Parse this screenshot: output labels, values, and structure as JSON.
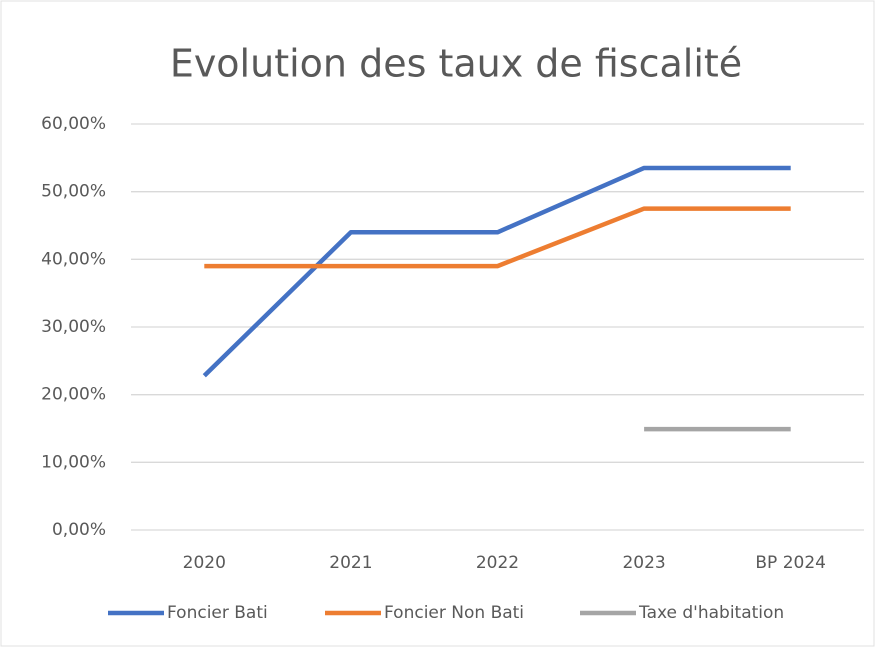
{
  "chart_data": {
    "type": "line",
    "title": "Evolution des taux de fiscalité",
    "categories": [
      "2020",
      "2021",
      "2022",
      "2023",
      "BP 2024"
    ],
    "series": [
      {
        "name": "Foncier Bati",
        "color": "#4472c4",
        "values": [
          22.8,
          44,
          44,
          53.5,
          53.5
        ]
      },
      {
        "name": "Foncier Non Bati",
        "color": "#ed7d31",
        "values": [
          39,
          39,
          39,
          47.5,
          47.5
        ]
      },
      {
        "name": "Taxe d'habitation",
        "color": "#a5a5a5",
        "values": [
          null,
          null,
          null,
          14.9,
          14.9
        ]
      }
    ],
    "ylim": [
      0,
      60
    ],
    "yticks": [
      {
        "value": 0,
        "label": "0,00%"
      },
      {
        "value": 10,
        "label": "10,00%"
      },
      {
        "value": 20,
        "label": "20,00%"
      },
      {
        "value": 30,
        "label": "30,00%"
      },
      {
        "value": 40,
        "label": "40,00%"
      },
      {
        "value": 50,
        "label": "50,00%"
      },
      {
        "value": 60,
        "label": "60,00%"
      }
    ],
    "grid": true,
    "legend": "bottom"
  }
}
